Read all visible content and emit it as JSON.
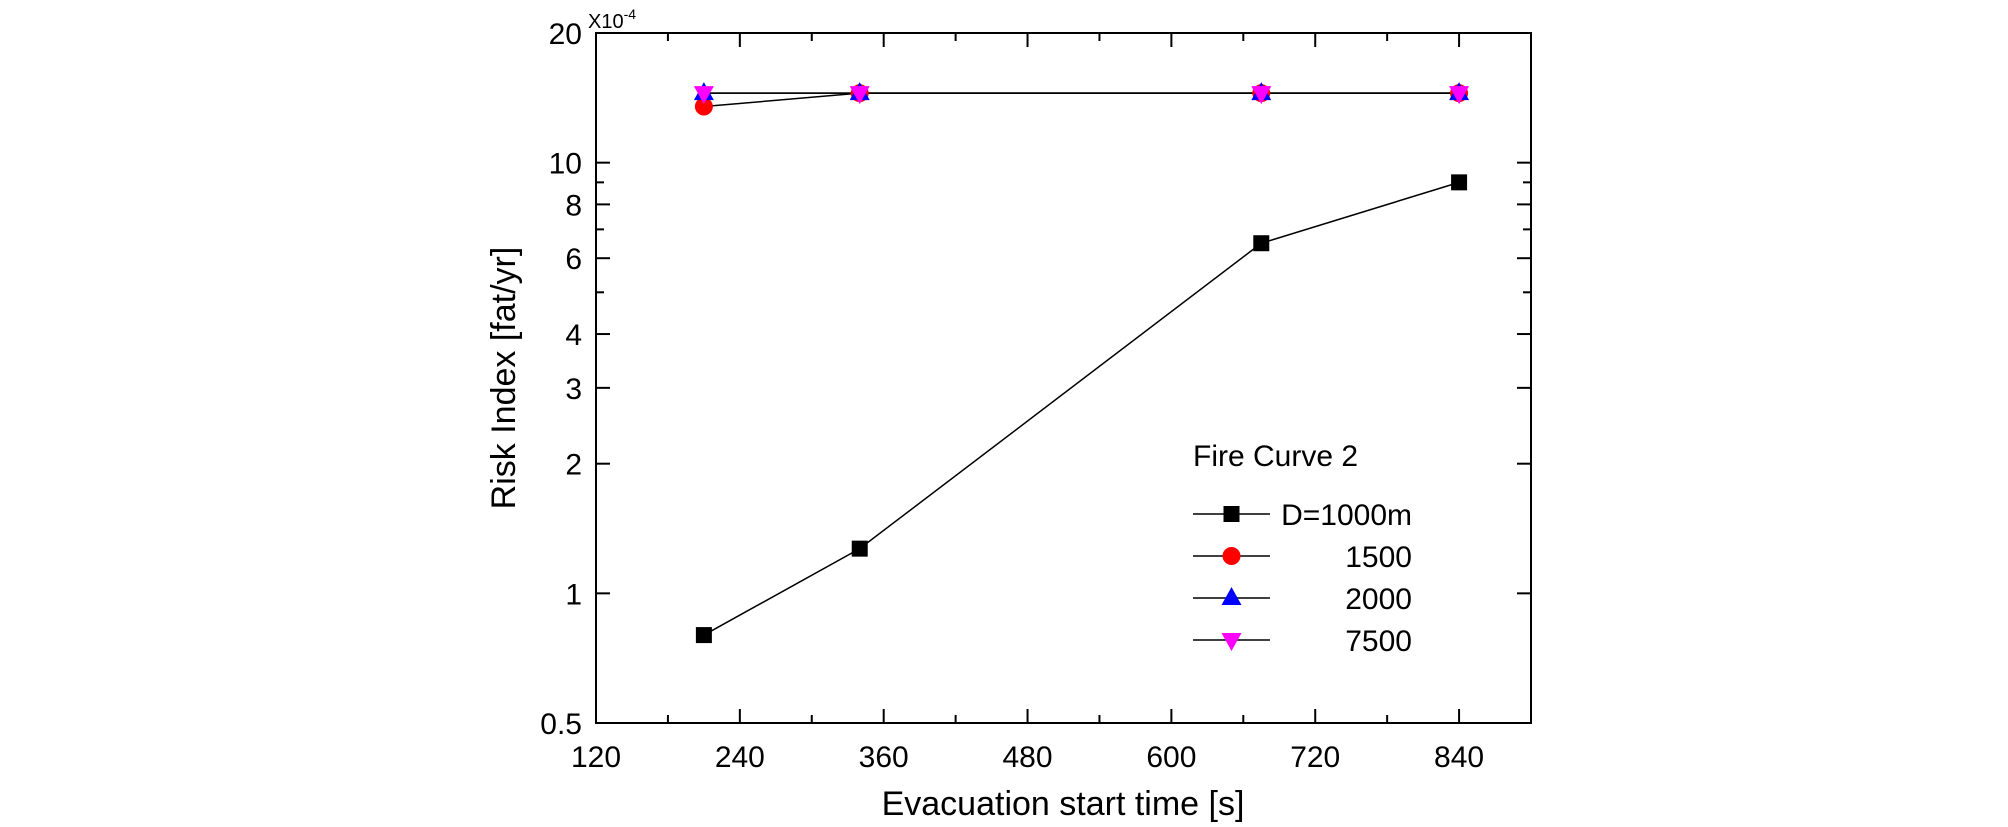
{
  "chart_data": {
    "type": "line",
    "xlabel": "Evacuation start time [s]",
    "ylabel": "Risk Index [fat/yr]",
    "y_multiplier": {
      "base": "X10",
      "exponent": "-4"
    },
    "xlim": [
      120,
      900
    ],
    "ylim": [
      0.5,
      20
    ],
    "yscale": "log",
    "x_ticks": [
      120,
      240,
      360,
      480,
      600,
      720,
      840
    ],
    "y_tick_labels": [
      {
        "value": 0.5,
        "label": "0.5"
      },
      {
        "value": 1,
        "label": "1"
      },
      {
        "value": 2,
        "label": "2"
      },
      {
        "value": 3,
        "label": "3"
      },
      {
        "value": 4,
        "label": "4"
      },
      {
        "value": 6,
        "label": "6"
      },
      {
        "value": 8,
        "label": "8"
      },
      {
        "value": 10,
        "label": "10"
      },
      {
        "value": 20,
        "label": "20"
      }
    ],
    "y_minor_ticks": [
      5,
      7,
      9
    ],
    "grid": false,
    "legend": {
      "title": "Fire Curve 2",
      "placement": "lower-right"
    },
    "series": [
      {
        "name": "D=1000m",
        "marker": "square",
        "color": "#000000",
        "x": [
          210,
          340,
          675,
          840
        ],
        "y": [
          0.8,
          1.27,
          6.5,
          9.0
        ]
      },
      {
        "name": "1500",
        "marker": "circle",
        "color": "#ff0000",
        "x": [
          210,
          340,
          675,
          840
        ],
        "y": [
          13.5,
          14.5,
          14.5,
          14.5
        ]
      },
      {
        "name": "2000",
        "marker": "triangle-up",
        "color": "#0000ff",
        "x": [
          210,
          340,
          675,
          840
        ],
        "y": [
          14.5,
          14.5,
          14.5,
          14.5
        ]
      },
      {
        "name": "7500",
        "marker": "triangle-down",
        "color": "#ff00ff",
        "x": [
          210,
          340,
          675,
          840
        ],
        "y": [
          14.5,
          14.5,
          14.5,
          14.5
        ]
      }
    ]
  }
}
